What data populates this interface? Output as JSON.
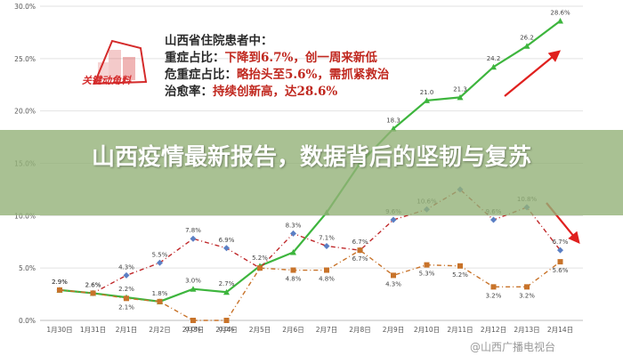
{
  "banner": {
    "title": "山西疫情最新报告，数据背后的坚韧与复苏"
  },
  "info": {
    "line1": "山西省住院患者中：",
    "line2_label": "重症占比：",
    "line2_value": "下降到6.7%，创一周来新低",
    "line3_label": "危重症占比：",
    "line3_value": "略抬头至5.6%，需抓紧救治",
    "line4_label": "治愈率：",
    "line4_value": "持续创新高，达28.6%"
  },
  "logo_text": "关键动角料",
  "watermark": "@山西广播电视台",
  "colors": {
    "cure": "#3db53d",
    "severe": "#c0282a",
    "critical": "#c8732a",
    "grid": "#e2e2e2",
    "axis_text": "#555555",
    "arrow": "#e0201e"
  },
  "chart_data": {
    "type": "line",
    "categories": [
      "1月30日",
      "1月31日",
      "2月1日",
      "2月2日",
      "2月3日",
      "2月4日",
      "2月5日",
      "2月6日",
      "2月7日",
      "2月8日",
      "2月9日",
      "2月10日",
      "2月11日",
      "2月12日",
      "2月13日",
      "2月14日"
    ],
    "ylim": [
      0,
      30
    ],
    "yticks": [
      "0.0%",
      "5.0%",
      "10.0%",
      "15.0%",
      "20.0%",
      "25.0%",
      "30.0%"
    ],
    "grid": true,
    "series": [
      {
        "key": "cure",
        "values": [
          2.9,
          2.6,
          2.2,
          1.8,
          3.0,
          2.7,
          5.2,
          6.5,
          10.3,
          15.0,
          18.3,
          21.0,
          21.3,
          24.2,
          26.2,
          28.6
        ],
        "labels": [
          "2.9%",
          "2.6%",
          "2.2%",
          "1.8%",
          "3.0%",
          "2.7%",
          "5.2%",
          "",
          "",
          "",
          "18.3",
          "21.0",
          "21.3",
          "24.2",
          "26.2",
          "28.6%"
        ]
      },
      {
        "key": "severe",
        "values": [
          2.9,
          2.6,
          4.3,
          5.5,
          7.8,
          6.9,
          5.0,
          8.3,
          7.1,
          6.7,
          9.6,
          10.6,
          12.5,
          9.6,
          10.8,
          6.7
        ],
        "labels": [
          "2.9%",
          "2.6%",
          "4.3%",
          "5.5%",
          "7.8%",
          "6.9%",
          "",
          "8.3%",
          "7.1%",
          "6.7%",
          "9.6%",
          "10.6%",
          "",
          "9.6%",
          "10.8%",
          "6.7%"
        ]
      },
      {
        "key": "critical",
        "values": [
          2.9,
          2.6,
          2.1,
          1.8,
          0,
          0,
          5.0,
          4.8,
          4.8,
          6.7,
          4.3,
          5.3,
          5.2,
          3.2,
          3.2,
          5.6
        ],
        "labels": [
          "",
          "",
          "2.1%",
          "",
          "0.0%",
          "0.0%",
          "",
          "4.8%",
          "4.8%",
          "6.7%",
          "4.3%",
          "5.3%",
          "5.2%",
          "3.2%",
          "3.2%",
          "5.6%"
        ]
      }
    ]
  }
}
